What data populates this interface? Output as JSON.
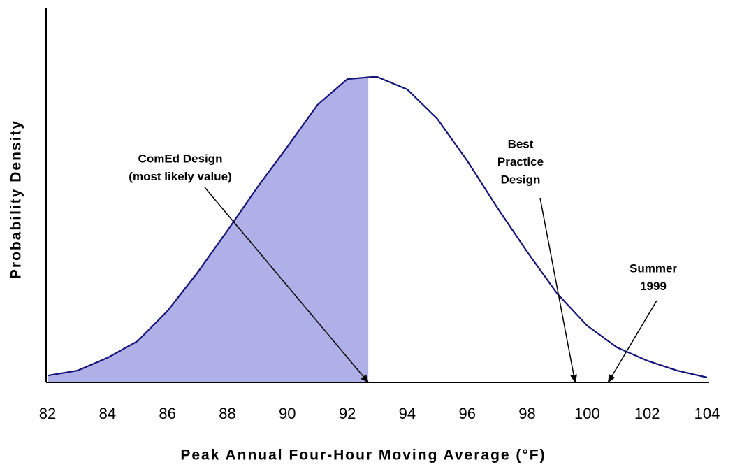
{
  "chart_data": {
    "type": "line",
    "x_label": "Peak Annual Four-Hour Moving Average (°F)",
    "y_label": "Probability Density",
    "x": [
      82,
      83,
      84,
      85,
      86,
      87,
      88,
      89,
      90,
      91,
      92,
      92.8,
      93,
      94,
      95,
      96,
      97,
      98,
      99,
      100,
      101,
      102,
      103,
      104
    ],
    "series": [
      {
        "color": "#14147a",
        "values": [
          0.0022,
          0.0038,
          0.0079,
          0.0132,
          0.0229,
          0.0352,
          0.0487,
          0.0626,
          0.0756,
          0.089,
          0.0973,
          0.098,
          0.098,
          0.094,
          0.0846,
          0.0711,
          0.0561,
          0.0419,
          0.0285,
          0.0182,
          0.0112,
          0.007,
          0.0038,
          0.0016
        ]
      }
    ],
    "shade_to": 92.7,
    "shade_color": "#b0b0e8",
    "xlim": [
      82,
      104
    ],
    "xticks": [
      82,
      84,
      86,
      88,
      90,
      92,
      94,
      96,
      98,
      100,
      102,
      104
    ],
    "ylim": [
      0,
      0.12
    ],
    "annotations": [
      {
        "lines": [
          "ComEd Design",
          "(most likely value)"
        ],
        "x": 92.7
      },
      {
        "lines": [
          "Best",
          "Practice",
          "Design"
        ],
        "x": 99.6
      },
      {
        "lines": [
          "Summer",
          "1999"
        ],
        "x": 100.7
      }
    ]
  }
}
